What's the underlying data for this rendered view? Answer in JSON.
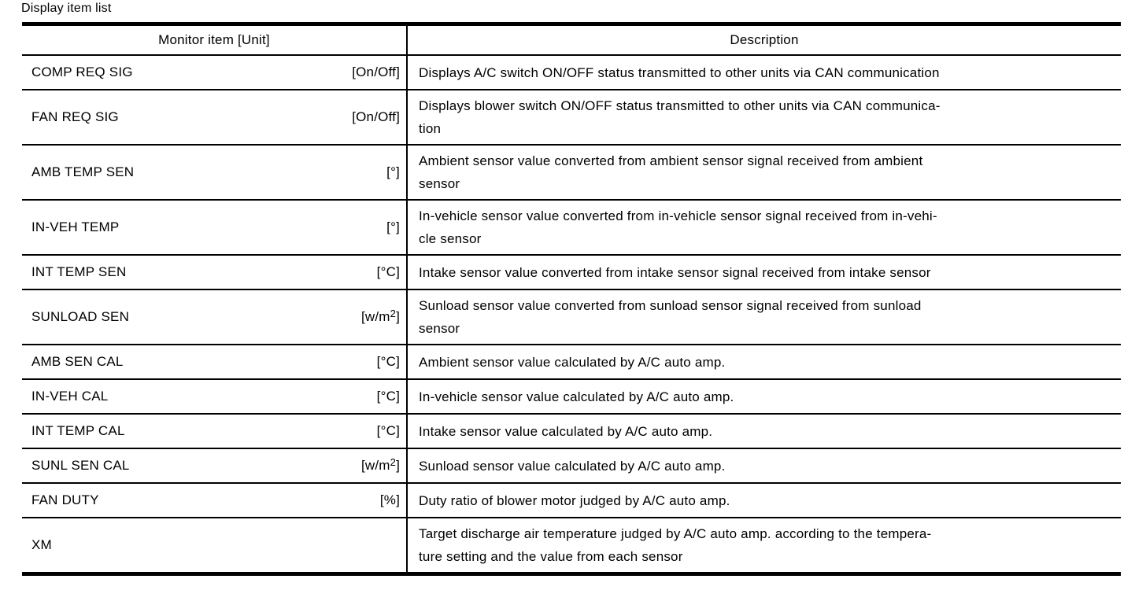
{
  "page": {
    "title": "Display item list"
  },
  "table": {
    "headers": {
      "monitor_item": "Monitor item [Unit]",
      "description": "Description"
    },
    "rows": [
      {
        "item": "COMP REQ SIG",
        "unit": "[On/Off]",
        "description": [
          "Displays A/C switch ON/OFF status transmitted to other units via CAN communication"
        ]
      },
      {
        "item": "FAN REQ SIG",
        "unit": "[On/Off]",
        "description": [
          "Displays blower switch ON/OFF status transmitted to other units via CAN communica-",
          "tion"
        ]
      },
      {
        "item": "AMB TEMP SEN",
        "unit": "[°]",
        "description": [
          "Ambient sensor value converted from ambient sensor signal received from ambient",
          "sensor"
        ]
      },
      {
        "item": "IN-VEH TEMP",
        "unit": "[°]",
        "description": [
          "In-vehicle sensor value converted from in-vehicle sensor signal received from in-vehi-",
          "cle sensor"
        ]
      },
      {
        "item": "INT TEMP SEN",
        "unit": "[°C]",
        "description": [
          "Intake sensor value converted from intake sensor signal received from intake sensor"
        ]
      },
      {
        "item": "SUNLOAD SEN",
        "unit": "[w/m²]",
        "description": [
          "Sunload sensor value converted from sunload sensor signal received from sunload",
          "sensor"
        ]
      },
      {
        "item": "AMB SEN CAL",
        "unit": "[°C]",
        "description": [
          "Ambient sensor value calculated by A/C auto amp."
        ]
      },
      {
        "item": "IN-VEH CAL",
        "unit": "[°C]",
        "description": [
          "In-vehicle sensor value calculated by A/C auto amp."
        ]
      },
      {
        "item": "INT TEMP CAL",
        "unit": "[°C]",
        "description": [
          "Intake sensor value calculated by A/C auto amp."
        ]
      },
      {
        "item": "SUNL SEN CAL",
        "unit": "[w/m²]",
        "description": [
          "Sunload sensor value calculated by A/C auto amp."
        ]
      },
      {
        "item": "FAN DUTY",
        "unit": "[%]",
        "description": [
          "Duty ratio of blower motor judged by A/C auto amp."
        ]
      },
      {
        "item": "XM",
        "unit": "",
        "description": [
          "Target discharge air temperature judged by A/C auto amp. according to the tempera-",
          "ture setting and the value from each sensor"
        ]
      }
    ],
    "colors": {
      "border": "#000000",
      "text": "#000000",
      "background": "#ffffff"
    }
  }
}
